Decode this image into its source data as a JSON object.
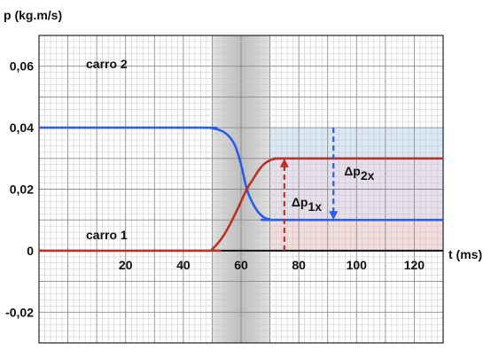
{
  "chart_data": {
    "type": "line",
    "ylabel": "p (kg.m/s)",
    "xlabel": "t (ms)",
    "xlim": [
      -10,
      130
    ],
    "ylim": [
      -0.03,
      0.07
    ],
    "x_ticks": [
      20,
      40,
      60,
      80,
      100,
      120
    ],
    "x_tick_labels": [
      "20",
      "40",
      "60",
      "80",
      "100",
      "120"
    ],
    "y_ticks": [
      -0.02,
      0,
      0.02,
      0.04,
      0.06
    ],
    "y_tick_labels": [
      "-0,02",
      "0",
      "0,02",
      "0,04",
      "0,06"
    ],
    "grid": true,
    "shaded_interval": [
      50,
      70
    ],
    "series": [
      {
        "name": "carro 2",
        "color": "#2a5de8",
        "x": [
          -10,
          46,
          50,
          52,
          54,
          56,
          58,
          60,
          62,
          64,
          66,
          68,
          70,
          72,
          130
        ],
        "y": [
          0.04,
          0.04,
          0.0398,
          0.0394,
          0.0386,
          0.037,
          0.034,
          0.028,
          0.02,
          0.0155,
          0.0125,
          0.0108,
          0.0102,
          0.01,
          0.01
        ]
      },
      {
        "name": "carro 1",
        "color": "#b83228",
        "x": [
          -10,
          48,
          50,
          54,
          58,
          62,
          64,
          66,
          68,
          70,
          72,
          74,
          76,
          130
        ],
        "y": [
          0,
          0,
          0.0005,
          0.005,
          0.012,
          0.02,
          0.023,
          0.026,
          0.0282,
          0.0294,
          0.0299,
          0.03,
          0.03,
          0.03
        ]
      }
    ],
    "annotations": [
      {
        "label_main": "Δp",
        "label_sub": "1x",
        "color": "#b83228",
        "x": 75,
        "from": 0,
        "to": 0.03
      },
      {
        "label_main": "Δp",
        "label_sub": "2x",
        "color": "#2a5de8",
        "x": 92,
        "from": 0.04,
        "to": 0.01
      }
    ],
    "bands": [
      {
        "color": "#dbe8f5",
        "from": 0.03,
        "to": 0.04,
        "x_from": 70
      },
      {
        "color": "#f3dcdc",
        "from": 0,
        "to": 0.01,
        "x_from": 70
      },
      {
        "color": "#e6e0ec",
        "from": 0.01,
        "to": 0.03,
        "x_from": 70
      }
    ]
  }
}
